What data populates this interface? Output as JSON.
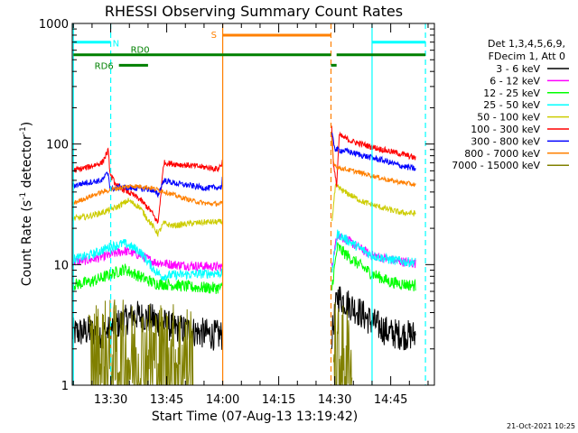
{
  "chart_data": {
    "type": "line",
    "title": "RHESSI Observing Summary Count Rates",
    "xlabel": "Start Time (07-Aug-13 13:19:42)",
    "ylabel": "Count Rate (s",
    "ylabel_sup1": "-1",
    "ylabel_mid": " detector",
    "ylabel_sup2": "-1",
    "ylabel_end": ")",
    "yscale": "log",
    "ylim": [
      1,
      1000
    ],
    "xlim_minutes": [
      0,
      97
    ],
    "x_tick_labels": [
      {
        "label": "13:30",
        "minutes": 10.3
      },
      {
        "label": "13:45",
        "minutes": 25.3
      },
      {
        "label": "14:00",
        "minutes": 40.3
      },
      {
        "label": "14:15",
        "minutes": 55.3
      },
      {
        "label": "14:30",
        "minutes": 70.3
      },
      {
        "label": "14:45",
        "minutes": 85.3
      }
    ],
    "y_tick_labels": [
      {
        "label": "1",
        "value": 1
      },
      {
        "label": "10",
        "value": 10
      },
      {
        "label": "100",
        "value": 100
      },
      {
        "label": "1000",
        "value": 1000
      }
    ],
    "legend_header": [
      "Det 1,3,4,5,6,9,",
      "FDecim 1, Att 0"
    ],
    "legend": [
      {
        "label": "3 - 6 keV",
        "color": "#000000"
      },
      {
        "label": "6 - 12 keV",
        "color": "#ff00ff"
      },
      {
        "label": "12 - 25 keV",
        "color": "#00ff00"
      },
      {
        "label": "25 - 50 keV",
        "color": "#00ffff"
      },
      {
        "label": "50 - 100 keV",
        "color": "#cccc00"
      },
      {
        "label": "100 - 300 keV",
        "color": "#ff0000"
      },
      {
        "label": "300 - 800 keV",
        "color": "#0000ff"
      },
      {
        "label": "800 - 7000 keV",
        "color": "#ff8000"
      },
      {
        "label": "7000 - 15000 keV",
        "color": "#808000"
      }
    ],
    "series": [
      {
        "name": "3 - 6 keV",
        "color": "#000000",
        "noise": 0.13,
        "points": [
          [
            0,
            2.7
          ],
          [
            4,
            2.8
          ],
          [
            9,
            2.7
          ],
          [
            12,
            3.2
          ],
          [
            17,
            3.8
          ],
          [
            22,
            3.5
          ],
          [
            27,
            3.0
          ],
          [
            32,
            2.8
          ],
          [
            38,
            2.6
          ],
          [
            40.2,
            2.6
          ],
          [
            null,
            null
          ],
          [
            69.5,
            2.5
          ],
          [
            71,
            5.5
          ],
          [
            75,
            4.5
          ],
          [
            80,
            3.4
          ],
          [
            85,
            2.7
          ],
          [
            90,
            2.6
          ],
          [
            92,
            2.6
          ]
        ]
      },
      {
        "name": "6 - 12 keV",
        "color": "#ff00ff",
        "noise": 0.04,
        "points": [
          [
            0,
            10.5
          ],
          [
            5,
            11
          ],
          [
            10,
            12
          ],
          [
            14,
            13
          ],
          [
            18,
            12
          ],
          [
            22,
            10.5
          ],
          [
            27,
            10
          ],
          [
            32,
            9.8
          ],
          [
            38,
            9.6
          ],
          [
            40.2,
            9.6
          ],
          [
            null,
            null
          ],
          [
            69.5,
            9.5
          ],
          [
            71,
            18
          ],
          [
            75,
            15
          ],
          [
            80,
            12
          ],
          [
            85,
            11
          ],
          [
            90,
            10.4
          ],
          [
            92,
            10.2
          ]
        ]
      },
      {
        "name": "12 - 25 keV",
        "color": "#00ff00",
        "noise": 0.05,
        "points": [
          [
            0,
            6.8
          ],
          [
            5,
            7.2
          ],
          [
            10,
            8.2
          ],
          [
            14,
            9.2
          ],
          [
            18,
            8.0
          ],
          [
            22,
            7.0
          ],
          [
            27,
            6.8
          ],
          [
            32,
            6.5
          ],
          [
            38,
            6.4
          ],
          [
            40.2,
            6.4
          ],
          [
            null,
            null
          ],
          [
            69.5,
            6.3
          ],
          [
            71,
            14
          ],
          [
            75,
            11
          ],
          [
            80,
            8.5
          ],
          [
            85,
            7.2
          ],
          [
            90,
            6.8
          ],
          [
            92,
            6.7
          ]
        ]
      },
      {
        "name": "25 - 50 keV",
        "color": "#00ffff",
        "noise": 0.04,
        "points": [
          [
            0,
            11
          ],
          [
            5,
            12
          ],
          [
            10,
            14
          ],
          [
            14,
            15
          ],
          [
            18,
            13
          ],
          [
            22,
            9
          ],
          [
            24,
            8
          ],
          [
            27,
            8.2
          ],
          [
            32,
            8.3
          ],
          [
            38,
            8.5
          ],
          [
            40.2,
            8.5
          ],
          [
            null,
            null
          ],
          [
            69.5,
            8.5
          ],
          [
            71,
            18
          ],
          [
            75,
            15
          ],
          [
            80,
            12
          ],
          [
            85,
            11
          ],
          [
            90,
            10.5
          ],
          [
            92,
            10.5
          ]
        ]
      },
      {
        "name": "50 - 100 keV",
        "color": "#cccc00",
        "noise": 0.025,
        "points": [
          [
            0,
            24
          ],
          [
            4,
            25
          ],
          [
            8,
            27
          ],
          [
            12,
            30
          ],
          [
            15,
            34
          ],
          [
            18,
            30
          ],
          [
            21,
            22
          ],
          [
            23,
            18
          ],
          [
            24.5,
            22
          ],
          [
            27,
            21
          ],
          [
            32,
            22
          ],
          [
            36,
            22.5
          ],
          [
            40.2,
            22.5
          ],
          [
            null,
            null
          ],
          [
            69.5,
            22
          ],
          [
            70.5,
            45
          ],
          [
            73,
            40
          ],
          [
            78,
            33
          ],
          [
            84,
            29
          ],
          [
            88,
            27
          ],
          [
            92,
            26.5
          ]
        ]
      },
      {
        "name": "100 - 300 keV",
        "color": "#ff0000",
        "noise": 0.025,
        "points": [
          [
            0,
            60
          ],
          [
            4,
            64
          ],
          [
            8,
            70
          ],
          [
            9.6,
            88
          ],
          [
            10.2,
            55
          ],
          [
            12,
            45
          ],
          [
            15,
            40
          ],
          [
            18,
            35
          ],
          [
            21,
            28
          ],
          [
            23,
            22
          ],
          [
            24.5,
            70
          ],
          [
            28,
            68
          ],
          [
            32,
            66
          ],
          [
            36,
            64
          ],
          [
            39,
            62
          ],
          [
            40,
            68
          ],
          [
            40.2,
            72
          ],
          [
            null,
            null
          ],
          [
            69.5,
            140
          ],
          [
            70,
            65
          ],
          [
            70.8,
            45
          ],
          [
            71.5,
            118
          ],
          [
            75,
            105
          ],
          [
            80,
            95
          ],
          [
            85,
            87
          ],
          [
            90,
            80
          ],
          [
            92,
            76
          ]
        ]
      },
      {
        "name": "300 - 800 keV",
        "color": "#0000ff",
        "noise": 0.025,
        "points": [
          [
            0,
            45
          ],
          [
            4,
            48
          ],
          [
            8,
            50
          ],
          [
            9.6,
            58
          ],
          [
            10.2,
            42
          ],
          [
            13,
            44
          ],
          [
            17,
            43
          ],
          [
            21,
            42
          ],
          [
            23,
            38
          ],
          [
            24.5,
            50
          ],
          [
            28,
            47
          ],
          [
            32,
            45
          ],
          [
            36,
            43
          ],
          [
            40,
            44
          ],
          [
            40.2,
            52
          ],
          [
            null,
            null
          ],
          [
            69.5,
            120
          ],
          [
            70.5,
            90
          ],
          [
            73,
            88
          ],
          [
            78,
            80
          ],
          [
            84,
            72
          ],
          [
            88,
            66
          ],
          [
            92,
            62
          ]
        ]
      },
      {
        "name": "800 - 7000 keV",
        "color": "#ff8000",
        "noise": 0.02,
        "points": [
          [
            0,
            32
          ],
          [
            4,
            36
          ],
          [
            8,
            40
          ],
          [
            12,
            43
          ],
          [
            16,
            45
          ],
          [
            20,
            44
          ],
          [
            24,
            41
          ],
          [
            28,
            37
          ],
          [
            32,
            34
          ],
          [
            36,
            32
          ],
          [
            40.2,
            32
          ],
          [
            null,
            null
          ],
          [
            69.5,
            110
          ],
          [
            70,
            70
          ],
          [
            71,
            64
          ],
          [
            75,
            60
          ],
          [
            80,
            55
          ],
          [
            85,
            50
          ],
          [
            90,
            47
          ],
          [
            92,
            46
          ]
        ]
      },
      {
        "name": "7000 - 15000 keV",
        "color": "#808000",
        "noise": 0.5,
        "points": [
          [
            4.5,
            1.6
          ],
          [
            10,
            1.7
          ],
          [
            15,
            1.6
          ],
          [
            20,
            1.7
          ],
          [
            25,
            1.6
          ],
          [
            30,
            1.6
          ],
          [
            32.5,
            1.6
          ],
          [
            null,
            null
          ],
          [
            70,
            1.6
          ],
          [
            74,
            1.5
          ],
          [
            75,
            1.5
          ]
        ]
      }
    ],
    "vertical_markers": [
      {
        "minutes": 0.3,
        "color": "#00ffff",
        "style": "solid"
      },
      {
        "minutes": 10.3,
        "color": "#00ffff",
        "style": "dashed"
      },
      {
        "minutes": 40.3,
        "color": "#ff8000",
        "style": "solid"
      },
      {
        "minutes": 69.3,
        "color": "#ff8000",
        "style": "dashed"
      },
      {
        "minutes": 80.3,
        "color": "#00ffff",
        "style": "solid"
      },
      {
        "minutes": 94.6,
        "color": "#00ffff",
        "style": "dashed"
      }
    ],
    "flag_bars": [
      {
        "label": "N",
        "color": "#00ffff",
        "level_value": 700,
        "segments": [
          [
            0.3,
            10.3
          ],
          [
            80.3,
            94.6
          ]
        ]
      },
      {
        "label": "S",
        "color": "#ff8000",
        "level_value": 800,
        "segments": [
          [
            40.3,
            69.3
          ]
        ]
      },
      {
        "label": "RD0",
        "color": "#008000",
        "level_value": 550,
        "segments": [
          [
            0.3,
            40.3
          ],
          [
            40.3,
            69.3
          ],
          [
            70.8,
            94.6
          ]
        ]
      },
      {
        "label": "RD6",
        "color": "#008000",
        "level_value": 450,
        "segments": [
          [
            12.5,
            20.3
          ],
          [
            69.3,
            70.8
          ]
        ]
      }
    ],
    "footer_date": "21-Oct-2021 10:25"
  }
}
